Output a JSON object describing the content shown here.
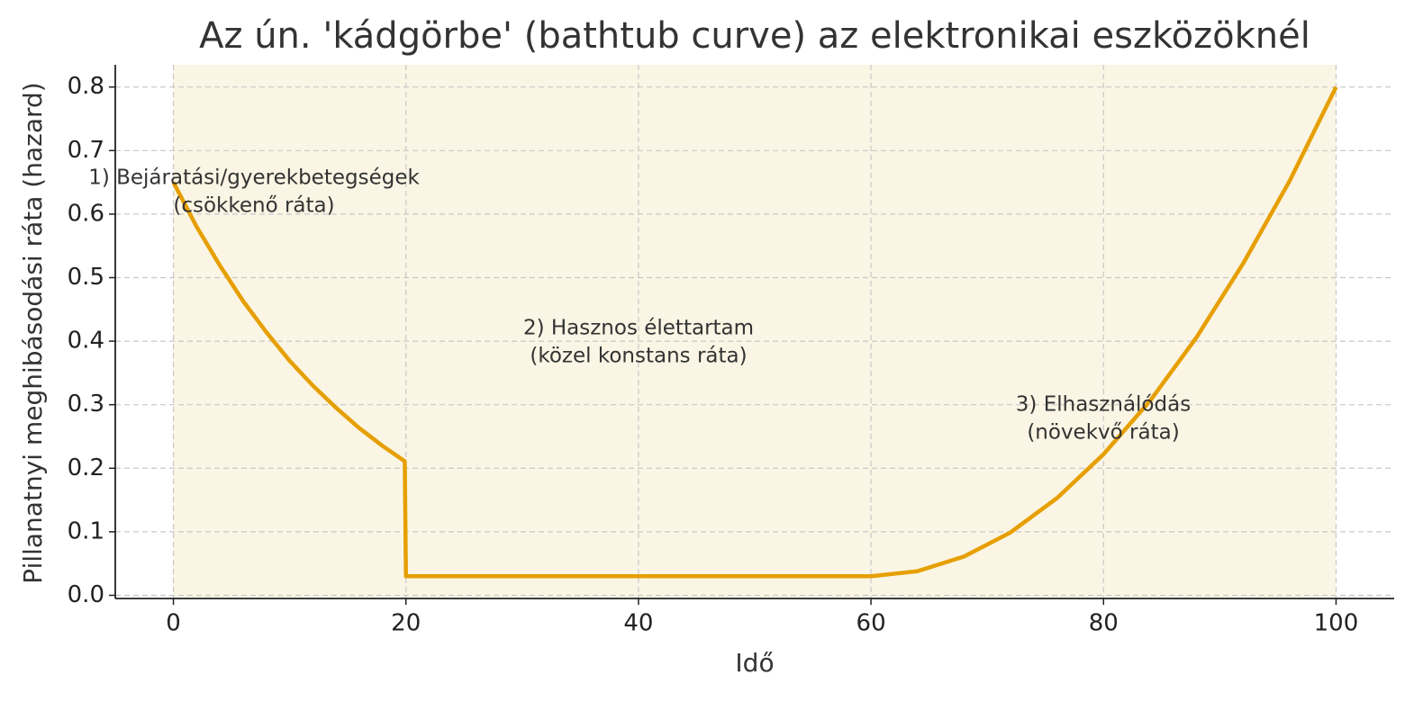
{
  "chart_data": {
    "type": "line",
    "title": "Az ún. 'kádgörbe' (bathtub curve) az elektronikai eszközöknél",
    "x_label": "Idő",
    "y_label": "Pillanatnyi meghibásodási ráta (hazard)",
    "x": [
      0,
      2,
      4,
      6,
      8,
      10,
      12,
      14,
      16,
      18,
      19.9,
      20,
      60,
      64,
      68,
      72,
      76,
      80,
      84,
      88,
      92,
      96,
      100
    ],
    "series": [
      {
        "name": "hazard",
        "color": "#e69f00",
        "values": [
          0.65,
          0.58,
          0.519,
          0.463,
          0.414,
          0.369,
          0.33,
          0.295,
          0.263,
          0.235,
          0.211,
          0.03,
          0.03,
          0.038,
          0.061,
          0.099,
          0.153,
          0.222,
          0.306,
          0.406,
          0.522,
          0.652,
          0.8
        ]
      }
    ],
    "xlim": [
      -5,
      105
    ],
    "ylim": [
      -0.005,
      0.835
    ],
    "xticks": [
      0,
      20,
      40,
      60,
      80,
      100
    ],
    "yticks": [
      {
        "value": 0,
        "label": "0.0"
      },
      0.1,
      0.2,
      0.3,
      0.4,
      0.5,
      0.6,
      0.7,
      0.8
    ],
    "grid": true,
    "shaded_span": [
      0,
      100
    ],
    "shade_color": "#faf5e4",
    "annotations": [
      [
        "1) Bejáratási/gyerekbetegségek",
        "(csökkenő ráta)"
      ],
      [
        "2) Hasznos élettartam",
        "(közel konstans ráta)"
      ],
      [
        "3) Elhasználódás",
        "(növekvő ráta)"
      ]
    ]
  }
}
